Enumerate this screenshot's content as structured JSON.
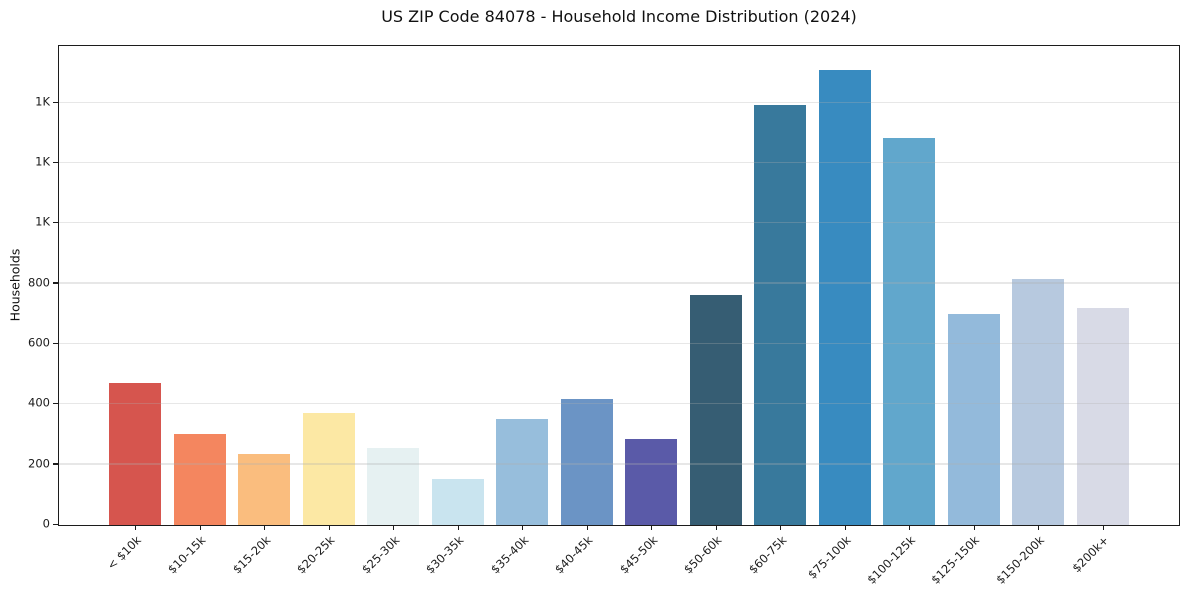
{
  "chart_data": {
    "type": "bar",
    "title": "US ZIP Code 84078 - Household Income Distribution (2024)",
    "xlabel": "",
    "ylabel": "Households",
    "categories": [
      "< $10k",
      "$10-15k",
      "$15-20k",
      "$20-25k",
      "$25-30k",
      "$30-35k",
      "$35-40k",
      "$40-45k",
      "$45-50k",
      "$50-60k",
      "$60-75k",
      "$75-100k",
      "$100-125k",
      "$125-150k",
      "$150-200k",
      "$200k+"
    ],
    "values": [
      470,
      302,
      234,
      372,
      254,
      154,
      350,
      419,
      284,
      764,
      1393,
      1509,
      1285,
      701,
      816,
      719
    ],
    "bar_colors": [
      "#d6554e",
      "#f4865f",
      "#fabd7e",
      "#fce8a4",
      "#e6f1f2",
      "#c9e4ef",
      "#97bedc",
      "#6b94c5",
      "#5a5aa8",
      "#365d73",
      "#38799c",
      "#388bc0",
      "#61a7cc",
      "#93badb",
      "#b7c9df",
      "#d8dae6"
    ],
    "ylim": [
      0,
      1585
    ],
    "yticks": {
      "values": [
        0,
        200,
        400,
        600,
        800,
        1000,
        1200,
        1400
      ],
      "labels": [
        "0",
        "200",
        "400",
        "600",
        "800",
        "1K",
        "1K",
        "1K"
      ]
    },
    "grid": "horizontal, drawn over bars, light grey",
    "legend": "none",
    "x_tick_rotation_deg": 45,
    "colors": {
      "background": "#ffffff",
      "spine": "#1c1c1c",
      "grid": "#b0b0b0",
      "text": "#111111"
    }
  }
}
